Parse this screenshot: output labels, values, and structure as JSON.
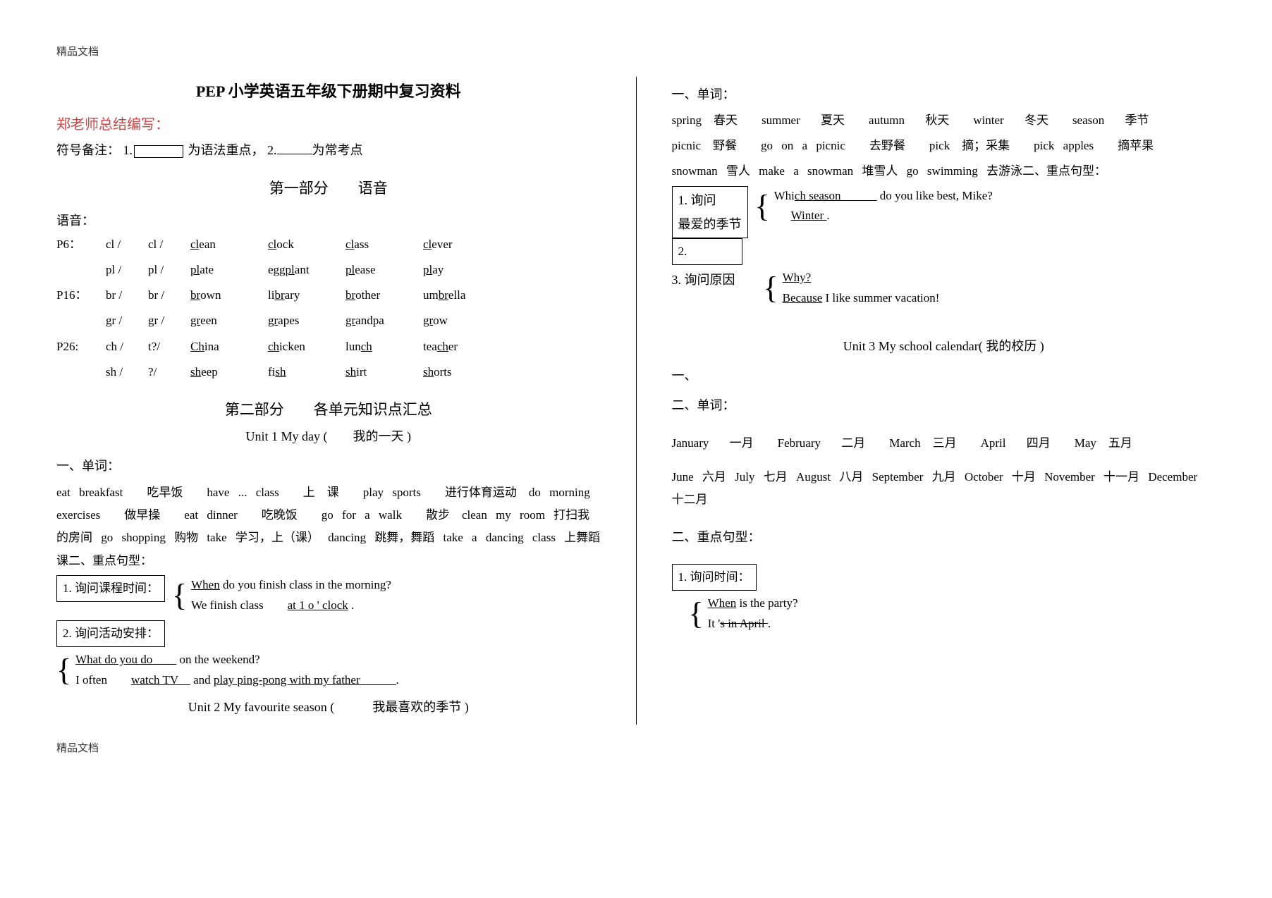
{
  "header": "精品文档",
  "footer": "精品文档",
  "left": {
    "title": "PEP 小学英语五年级下册期中复习资料",
    "author": "郑老师总结编写：",
    "notes_prefix": "符号备注：  1.",
    "notes_mid": " 为语法重点，  2.",
    "notes_suffix": "为常考点",
    "part1_hdr": "第一部分　　语音",
    "phonics_label": "语音：",
    "phonics": [
      {
        "pg": "P6：",
        "a": "cl /",
        "b": "cl /",
        "w": [
          [
            "cl",
            "ean"
          ],
          [
            "cl",
            "ock"
          ],
          [
            "cl",
            "ass"
          ],
          [
            "cl",
            "ever"
          ]
        ]
      },
      {
        "pg": "",
        "a": "pl /",
        "b": "pl /",
        "w": [
          [
            "pl",
            "ate"
          ],
          [
            "egg",
            "pl",
            "ant"
          ],
          [
            "pl",
            "ease"
          ],
          [
            "pl",
            "ay"
          ]
        ]
      },
      {
        "pg": "P16：",
        "a": "br /",
        "b": "br /",
        "w": [
          [
            "br",
            "own"
          ],
          [
            "li",
            "br",
            "ary"
          ],
          [
            "br",
            "other"
          ],
          [
            "um",
            "br",
            "ella"
          ]
        ]
      },
      {
        "pg": "",
        "a": "gr /",
        "b": "gr /",
        "w": [
          [
            "gr",
            "een"
          ],
          [
            "gr",
            "apes"
          ],
          [
            "gr",
            "andpa"
          ],
          [
            "gr",
            "ow"
          ]
        ]
      },
      {
        "pg": "P26:",
        "a": "ch /",
        "b": "t?/",
        "w": [
          [
            "Ch",
            "ina"
          ],
          [
            "ch",
            "icken"
          ],
          [
            "lun",
            "ch",
            " "
          ],
          [
            "tea",
            "ch",
            "er"
          ]
        ]
      },
      {
        "pg": "",
        "a": "sh /",
        "b": "?/",
        "w": [
          [
            "sh",
            "eep"
          ],
          [
            "fi",
            "sh",
            " "
          ],
          [
            "sh",
            "irt"
          ],
          [
            "sh",
            "orts"
          ]
        ]
      }
    ],
    "part2_hdr": "第二部分　　各单元知识点汇总",
    "unit1_hdr": "Unit 1 My day (　　我的一天  )",
    "u1_vocab_hdr": "一、单词：",
    "u1_vocab": "eat breakfast　　吃早饭　　have ... class　　上　课　　play sports　　进行体育运动　do morning exercises　　做早操　　eat dinner　　吃晚饭　　go for a walk　　散步　clean my room 打扫我的房间 go shopping 购物 take 学习，上（课）  dancing 跳舞，舞蹈 take a dancing class 上舞蹈课二、重点句型：",
    "u1_q1_box": "1. 询问课程时间：",
    "u1_q1_l1a": "When",
    "u1_q1_l1b": "   do you finish class in the morning?",
    "u1_q1_l2a": "We finish class　　",
    "u1_q1_l2b": "at 1 o ' clock",
    "u1_q1_l2c": " .",
    "u1_q2_box": "2. 询问活动安排：",
    "u1_q2_l1": "What do you do　　",
    "u1_q2_l1b": " on the weekend?",
    "u1_q2_l2a": "I often　　",
    "u1_q2_l2b": "watch TV　",
    "u1_q2_l2c": " and ",
    "u1_q2_l2d": "play ping-pong with my father　　　",
    "u1_q2_l2e": ".",
    "unit2_hdr": "Unit 2 My favourite season (　　　我最喜欢的季节  )"
  },
  "right": {
    "u2_vocab_hdr": "一、单词：",
    "u2_vocab1": "spring　春天　　summer　 夏天　　autumn　 秋天　　winter　 冬天　　season　 季节",
    "u2_vocab2": "picnic　野餐　　go on a picnic　　去野餐　　pick　摘；采集　　pick apples　　摘苹果",
    "u2_vocab3": "snowman 雪人 make a snowman 堆雪人 go swimming 去游泳二、重点句型：",
    "u2_q1_box1": "1.  询问",
    "u2_q1_box2": "最爱的季节",
    "u2_q1_l1a": "Whi",
    "u2_q1_l1b": "ch season　　　",
    "u2_q1_l1c": " do you like best, Mike?",
    "u2_q1_l2": "Winter  ",
    "u2_q1_l2b": ".",
    "u2_q2_box": "2.",
    "u2_q3_label": "3.  询问原因",
    "u2_q3_l1": "Why?",
    "u2_q3_l2a": "Because",
    "u2_q3_l2b": "  I like summer vacation!",
    "unit3_hdr": "Unit 3 My school calendar( 我的校历  )",
    "u3_hdr1": "一、",
    "u3_hdr2": "二、单词：",
    "u3_vocab1": "January　 一月　　February　 二月　　March　三月　　April　 四月　　May　五月",
    "u3_vocab2": "June 六月 July 七月 August 八月 September 九月 October 十月 November 十一月 December 十二月",
    "u3_hdr3": "二、重点句型：",
    "u3_q1_box": "1. 询问时间：",
    "u3_q1_l1a": "When",
    "u3_q1_l1b": "  is the party?",
    "u3_q1_l2a": "It '",
    "u3_q1_l2b": "s in April  ",
    "u3_q1_l2c": "."
  }
}
